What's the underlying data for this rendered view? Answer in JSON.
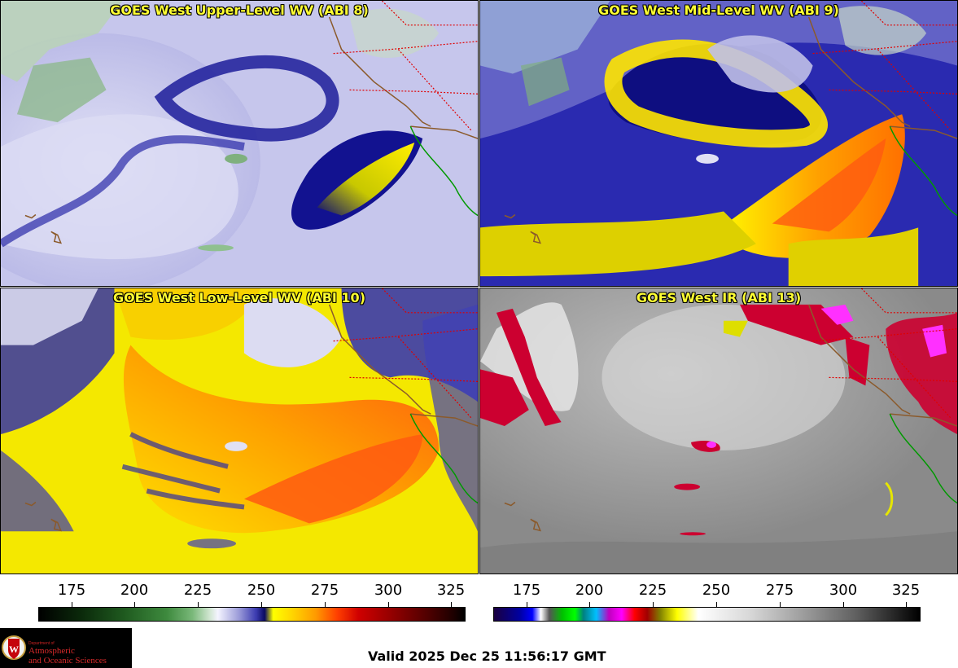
{
  "panels": [
    {
      "title": "GOES West Upper-Level WV (ABI 8)"
    },
    {
      "title": "GOES West Mid-Level WV (ABI 9)"
    },
    {
      "title": "GOES West Low-Level WV (ABI 10)"
    },
    {
      "title": "GOES West IR (ABI 13)"
    }
  ],
  "scale_left": {
    "ticks": [
      "175",
      "200",
      "225",
      "250",
      "275",
      "300",
      "325"
    ]
  },
  "scale_right": {
    "ticks": [
      "175",
      "200",
      "225",
      "250",
      "275",
      "300",
      "325"
    ]
  },
  "logo": {
    "small": "Department of",
    "line1": "Atmospheric",
    "line2": "and Oceanic Sciences"
  },
  "footer": {
    "valid": "Valid 2025 Dec 25 11:56:17 GMT"
  },
  "colors": {
    "title_text": "#ffff33",
    "border_line": "#8b5a2b",
    "state_line": "#e00000",
    "mexico_line": "#009900"
  }
}
